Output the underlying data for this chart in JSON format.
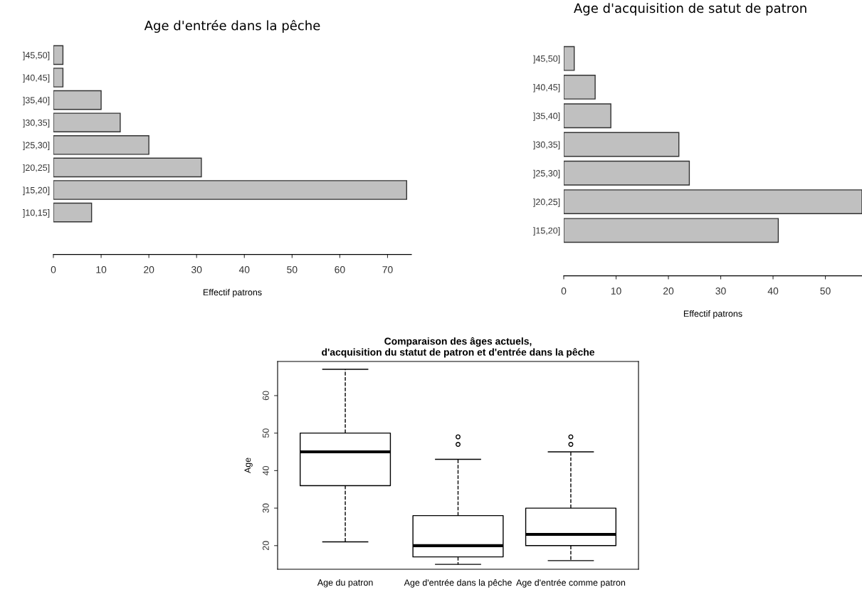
{
  "chart_data": [
    {
      "type": "bar",
      "orientation": "horizontal",
      "title": "Age d'entrée dans la pêche",
      "xlabel": "Effectif patrons",
      "categories": [
        "]45,50]",
        "]40,45]",
        "]35,40]",
        "]30,35]",
        "]25,30]",
        "]20,25]",
        "]15,20]",
        "]10,15]"
      ],
      "values": [
        2,
        2,
        10,
        14,
        20,
        31,
        74,
        8
      ],
      "color": "#c0c0c0",
      "xlim": [
        0,
        75
      ],
      "xticks": [
        0,
        10,
        20,
        30,
        40,
        50,
        60,
        70
      ],
      "grid": false
    },
    {
      "type": "bar",
      "orientation": "horizontal",
      "title": "Age d'acquisition de satut de patron",
      "xlabel": "Effectif patrons",
      "categories": [
        "]45,50]",
        "]40,45]",
        "]35,40]",
        "]30,35]",
        "]25,30]",
        "]20,25]",
        "]15,20]"
      ],
      "values": [
        2,
        6,
        9,
        22,
        24,
        57,
        41
      ],
      "color": "#c0c0c0",
      "xlim": [
        0,
        57
      ],
      "xticks": [
        0,
        10,
        20,
        30,
        40,
        50
      ],
      "grid": false
    },
    {
      "type": "box",
      "title": "Comparaison des âges actuels,\nd'acquisition du statut de patron et d'entrée dans la pêche",
      "ylabel": "Age",
      "categories": [
        "Age du patron",
        "Age d'entrée dans la pêche",
        "Age d'entrée comme patron"
      ],
      "boxes": [
        {
          "low": 21,
          "q1": 36,
          "median": 45,
          "q3": 50,
          "high": 67
        },
        {
          "low": 15,
          "q1": 17,
          "median": 20,
          "q3": 28,
          "high": 43,
          "outliers": [
            47,
            49
          ]
        },
        {
          "low": 16,
          "q1": 20,
          "median": 23,
          "q3": 30,
          "high": 45,
          "outliers": [
            47,
            49
          ]
        }
      ],
      "ylim": [
        13.7,
        69.1
      ],
      "yticks": [
        20,
        30,
        40,
        50,
        60
      ],
      "grid": false
    }
  ]
}
